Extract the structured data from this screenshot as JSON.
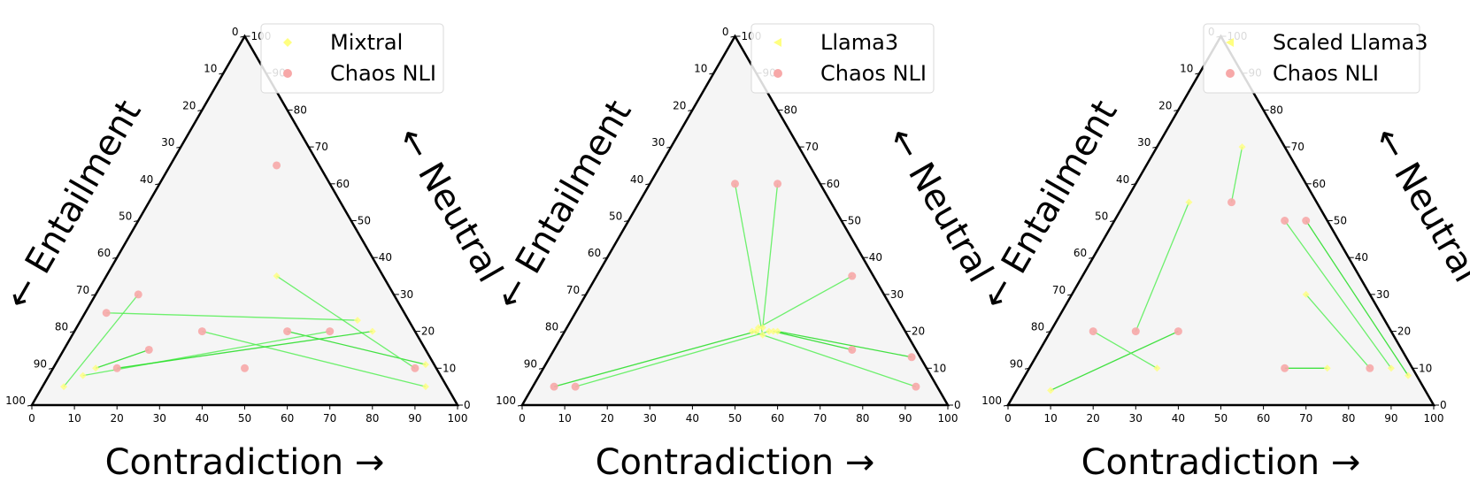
{
  "chart_data": [
    {
      "type": "ternary-scatter",
      "title": "",
      "axes": {
        "bottom_label": "Contradiction →",
        "left_label": "← Entailment",
        "right_label": "← Neutral",
        "ticks": [
          "0",
          "10",
          "20",
          "30",
          "40",
          "50",
          "60",
          "70",
          "80",
          "90",
          "100"
        ]
      },
      "legend": {
        "position": "top-right",
        "entries": [
          {
            "label": "Mixtral",
            "marker": "diamond",
            "color": "#ffff80"
          },
          {
            "label": "Chaos NLI",
            "marker": "circle",
            "color": "#f7a8a8"
          }
        ]
      },
      "series": [
        {
          "name": "Mixtral",
          "points": [
            [
              0.1,
              0.8,
              0.1
            ],
            [
              0.05,
              0.9,
              0.05
            ],
            [
              0.9,
              0.05,
              0.05
            ],
            [
              0.87,
              0.02,
              0.11
            ],
            [
              0.08,
              0.84,
              0.08
            ],
            [
              0.4,
              0.25,
              0.35
            ],
            [
              0.7,
              0.1,
              0.2
            ],
            [
              0.65,
              0.12,
              0.23
            ]
          ]
        },
        {
          "name": "Chaos NLI",
          "points": [
            [
              0.2,
              0.65,
              0.15
            ],
            [
              0.1,
              0.6,
              0.3
            ],
            [
              0.3,
              0.5,
              0.2
            ],
            [
              0.5,
              0.3,
              0.2
            ],
            [
              0.6,
              0.2,
              0.2
            ],
            [
              0.85,
              0.05,
              0.1
            ],
            [
              0.15,
              0.75,
              0.1
            ],
            [
              0.05,
              0.7,
              0.25
            ],
            [
              0.25,
              0.1,
              0.65
            ],
            [
              0.45,
              0.45,
              0.1
            ]
          ]
        }
      ],
      "links": [
        [
          0,
          0
        ],
        [
          1,
          1
        ],
        [
          2,
          2
        ],
        [
          3,
          3
        ],
        [
          4,
          4
        ],
        [
          5,
          5
        ],
        [
          6,
          6
        ],
        [
          7,
          7
        ]
      ]
    },
    {
      "type": "ternary-scatter",
      "title": "",
      "axes": {
        "bottom_label": "Contradiction →",
        "left_label": "← Entailment",
        "right_label": "← Neutral",
        "ticks": [
          "0",
          "10",
          "20",
          "30",
          "40",
          "50",
          "60",
          "70",
          "80",
          "90",
          "100"
        ]
      },
      "legend": {
        "position": "top-right",
        "entries": [
          {
            "label": "Llama3",
            "marker": "triangle",
            "color": "#ffff80"
          },
          {
            "label": "Chaos NLI",
            "marker": "circle",
            "color": "#f7a8a8"
          }
        ]
      },
      "series": [
        {
          "name": "Llama3",
          "points": [
            [
              0.45,
              0.35,
              0.2
            ],
            [
              0.48,
              0.32,
              0.2
            ],
            [
              0.44,
              0.36,
              0.2
            ],
            [
              0.5,
              0.3,
              0.2
            ],
            [
              0.46,
              0.33,
              0.21
            ],
            [
              0.47,
              0.34,
              0.19
            ],
            [
              0.49,
              0.31,
              0.2
            ],
            [
              0.45,
              0.34,
              0.21
            ]
          ]
        },
        {
          "name": "Chaos NLI",
          "points": [
            [
              0.05,
              0.9,
              0.05
            ],
            [
              0.1,
              0.85,
              0.05
            ],
            [
              0.9,
              0.05,
              0.05
            ],
            [
              0.85,
              0.02,
              0.13
            ],
            [
              0.3,
              0.1,
              0.6
            ],
            [
              0.2,
              0.2,
              0.6
            ],
            [
              0.7,
              0.15,
              0.15
            ],
            [
              0.6,
              0.05,
              0.35
            ]
          ]
        }
      ],
      "links": [
        [
          0,
          0
        ],
        [
          1,
          1
        ],
        [
          2,
          2
        ],
        [
          3,
          3
        ],
        [
          4,
          4
        ],
        [
          5,
          5
        ],
        [
          6,
          6
        ],
        [
          7,
          7
        ]
      ]
    },
    {
      "type": "ternary-scatter",
      "title": "",
      "axes": {
        "bottom_label": "Contradiction →",
        "left_label": "← Entailment",
        "right_label": "← Neutral",
        "ticks": [
          "0",
          "10",
          "20",
          "30",
          "40",
          "50",
          "60",
          "70",
          "80",
          "90",
          "100"
        ]
      },
      "legend": {
        "position": "top-right",
        "entries": [
          {
            "label": "Scaled Llama3",
            "marker": "triangle",
            "color": "#ffff80"
          },
          {
            "label": "Chaos NLI",
            "marker": "circle",
            "color": "#f7a8a8"
          }
        ]
      },
      "series": [
        {
          "name": "Scaled Llama3",
          "points": [
            [
              0.08,
              0.88,
              0.04
            ],
            [
              0.85,
              0.05,
              0.1
            ],
            [
              0.3,
              0.6,
              0.1
            ],
            [
              0.7,
              0.2,
              0.1
            ],
            [
              0.2,
              0.1,
              0.7
            ],
            [
              0.55,
              0.15,
              0.3
            ],
            [
              0.9,
              0.02,
              0.08
            ],
            [
              0.15,
              0.3,
              0.55
            ]
          ]
        },
        {
          "name": "Chaos NLI",
          "points": [
            [
              0.3,
              0.5,
              0.2
            ],
            [
              0.4,
              0.1,
              0.5
            ],
            [
              0.1,
              0.7,
              0.2
            ],
            [
              0.6,
              0.3,
              0.1
            ],
            [
              0.25,
              0.2,
              0.55
            ],
            [
              0.8,
              0.1,
              0.1
            ],
            [
              0.45,
              0.05,
              0.5
            ],
            [
              0.2,
              0.6,
              0.2
            ]
          ]
        }
      ],
      "links": [
        [
          0,
          0
        ],
        [
          1,
          1
        ],
        [
          2,
          2
        ],
        [
          3,
          3
        ],
        [
          4,
          4
        ],
        [
          5,
          5
        ],
        [
          6,
          6
        ],
        [
          7,
          7
        ]
      ]
    }
  ]
}
